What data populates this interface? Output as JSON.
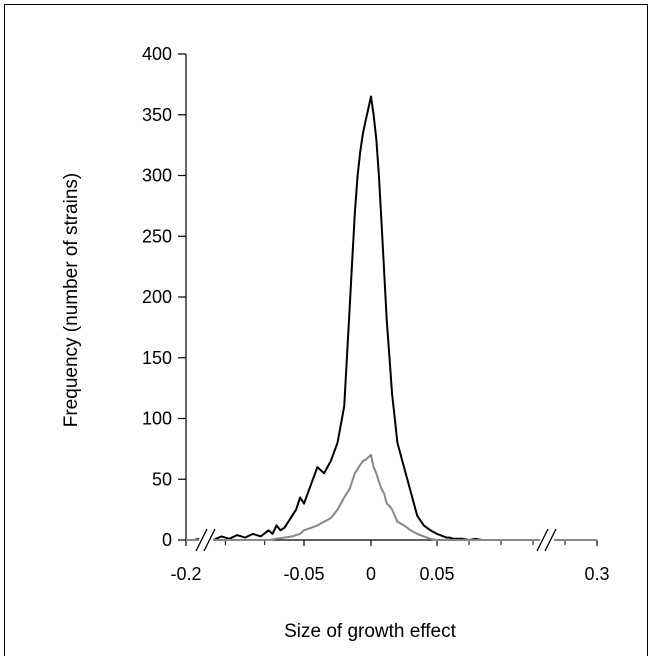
{
  "chart_data": {
    "type": "line",
    "xlabel": "Size of growth effect",
    "ylabel": "Frequency (number of strains)",
    "ylim": [
      0,
      400
    ],
    "xlim": [
      -0.2,
      0.3
    ],
    "x_axis_breaks": "double slash breaks near both ends",
    "grid": false,
    "legend": "none",
    "yticks": [
      0,
      50,
      100,
      150,
      200,
      250,
      300,
      350,
      400
    ],
    "xtick_labels": [
      "-0.2",
      "-0.05",
      "0",
      "0.05",
      "0.3"
    ],
    "series": [
      {
        "color": "#000000",
        "x": [
          -0.2,
          -0.19,
          -0.175,
          -0.165,
          -0.155,
          -0.145,
          -0.135,
          -0.125,
          -0.115,
          -0.105,
          -0.095,
          -0.09,
          -0.085,
          -0.08,
          -0.075,
          -0.07,
          -0.065,
          -0.06,
          -0.055,
          -0.05,
          -0.045,
          -0.04,
          -0.035,
          -0.03,
          -0.025,
          -0.02,
          -0.018,
          -0.016,
          -0.014,
          -0.012,
          -0.01,
          -0.008,
          -0.006,
          -0.004,
          -0.002,
          0,
          0.002,
          0.004,
          0.006,
          0.008,
          0.01,
          0.012,
          0.014,
          0.016,
          0.018,
          0.02,
          0.025,
          0.03,
          0.035,
          0.04,
          0.045,
          0.05,
          0.055,
          0.06,
          0.065,
          0.07,
          0.075,
          0.08,
          0.09,
          0.1,
          0.11,
          0.12,
          0.13,
          0.14,
          0.15,
          0.16,
          0.17,
          0.18,
          0.19,
          0.2,
          0.22,
          0.24,
          0.26,
          0.28,
          0.3
        ],
        "y": [
          0,
          0,
          2,
          0,
          3,
          1,
          4,
          2,
          5,
          3,
          8,
          5,
          12,
          8,
          10,
          15,
          20,
          25,
          35,
          30,
          45,
          60,
          55,
          65,
          80,
          110,
          150,
          190,
          230,
          270,
          300,
          320,
          335,
          345,
          355,
          365,
          350,
          330,
          300,
          260,
          220,
          180,
          150,
          120,
          100,
          80,
          60,
          40,
          20,
          12,
          8,
          5,
          4,
          3,
          2,
          2,
          1,
          1,
          1,
          0,
          1,
          0,
          0,
          0,
          0,
          0,
          0,
          0,
          0,
          0,
          0,
          0,
          0,
          0,
          0
        ]
      },
      {
        "color": "#888888",
        "x": [
          -0.2,
          -0.19,
          -0.175,
          -0.165,
          -0.155,
          -0.145,
          -0.135,
          -0.125,
          -0.115,
          -0.105,
          -0.095,
          -0.085,
          -0.075,
          -0.065,
          -0.06,
          -0.055,
          -0.05,
          -0.045,
          -0.04,
          -0.035,
          -0.03,
          -0.025,
          -0.02,
          -0.016,
          -0.012,
          -0.008,
          -0.006,
          -0.004,
          -0.002,
          0,
          0.002,
          0.004,
          0.006,
          0.008,
          0.01,
          0.012,
          0.014,
          0.016,
          0.018,
          0.02,
          0.025,
          0.03,
          0.035,
          0.04,
          0.045,
          0.05,
          0.06,
          0.07,
          0.08,
          0.1,
          0.12,
          0.14,
          0.16,
          0.18,
          0.2,
          0.22,
          0.24,
          0.26,
          0.28,
          0.3
        ],
        "y": [
          0,
          0,
          0,
          0,
          0,
          0,
          0,
          0,
          0,
          0,
          0,
          1,
          2,
          3,
          4,
          5,
          8,
          10,
          12,
          15,
          18,
          25,
          35,
          42,
          55,
          62,
          65,
          66,
          68,
          70,
          60,
          55,
          48,
          42,
          38,
          30,
          28,
          25,
          20,
          15,
          12,
          8,
          5,
          3,
          1,
          0,
          0,
          0,
          0,
          0,
          0,
          0,
          0,
          0,
          0,
          0,
          0,
          0,
          0,
          0
        ]
      }
    ]
  }
}
